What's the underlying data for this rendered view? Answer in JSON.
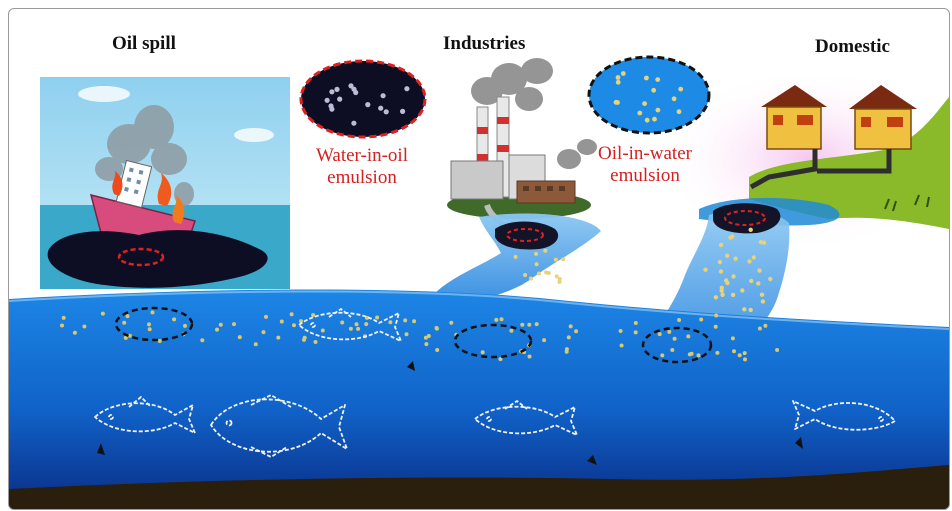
{
  "headings": {
    "oil_spill": "Oil spill",
    "industries": "Industries",
    "domestic": "Domestic"
  },
  "emulsions": {
    "water_in_oil": {
      "line1": "Water-in-oil",
      "line2": "emulsion"
    },
    "oil_in_water": {
      "line1": "Oil-in-water",
      "line2": "emulsion"
    }
  },
  "colors": {
    "label_red": "#d42020",
    "oil_dark": "#0d0d24",
    "sea_top": "#1a7de0",
    "sea_bottom": "#0a2c85",
    "sediment": "#2a1e0c"
  },
  "icons": [
    "ship-icon",
    "factory-icon",
    "house-icon",
    "fish-icon"
  ]
}
